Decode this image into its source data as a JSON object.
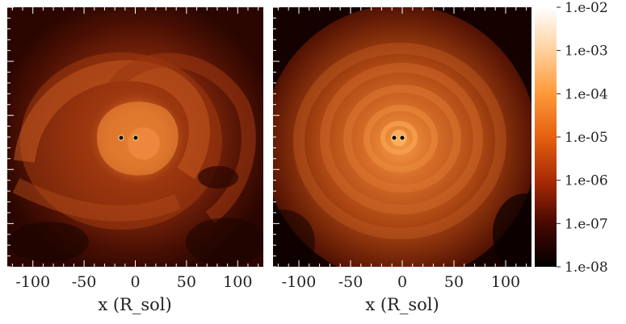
{
  "chart_data": [
    {
      "type": "heatmap",
      "panel": "left",
      "title": "",
      "xlabel": "x (R_sol)",
      "ylabel": "",
      "xlim": [
        -125,
        125
      ],
      "xticks": [
        -100,
        -50,
        0,
        50,
        100
      ],
      "tick_labels": [
        "-100",
        "-50",
        "0",
        "50",
        "100"
      ],
      "stars": [
        {
          "x": -15,
          "y": 0
        },
        {
          "x": 0,
          "y": 0
        }
      ],
      "description_of_field": "spiral density structure around binary stars"
    },
    {
      "type": "heatmap",
      "panel": "right",
      "title": "",
      "xlabel": "x (R_sol)",
      "ylabel": "",
      "xlim": [
        -125,
        125
      ],
      "xticks": [
        -100,
        -50,
        0,
        50,
        100
      ],
      "tick_labels": [
        "-100",
        "-50",
        "0",
        "50",
        "100"
      ],
      "stars": [
        {
          "x": -8,
          "y": 0
        },
        {
          "x": 2,
          "y": 0
        }
      ]
    }
  ],
  "colorbar": {
    "scale": "log",
    "labels": [
      "1.e-02",
      "1.e-03",
      "1.e-04",
      "1.e-05",
      "1.e-06",
      "1.e-07",
      "1.e-08"
    ],
    "colors": [
      "#ffffff",
      "#ffcf9a",
      "#ff9a3a",
      "#e56010",
      "#a82a06",
      "#4a0800",
      "#000000"
    ]
  }
}
